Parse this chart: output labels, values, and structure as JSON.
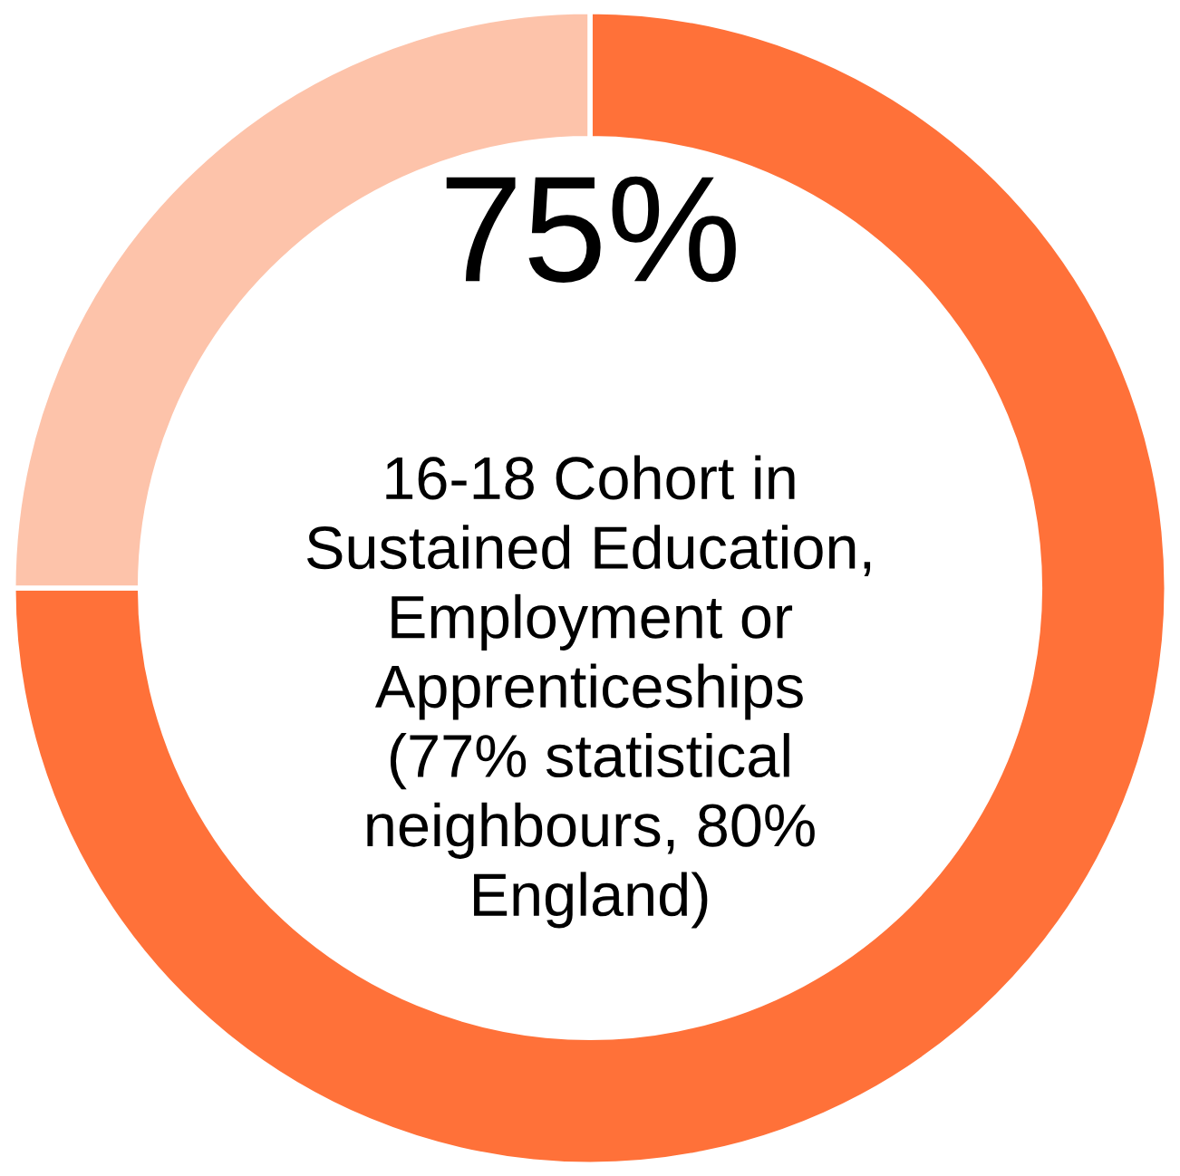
{
  "chart_data": {
    "type": "donut",
    "categories": [
      null,
      null
    ],
    "values": [
      75,
      25
    ],
    "colors": [
      "#ff7139",
      "#fdc3aa"
    ],
    "value_labels": [
      "75%",
      null
    ],
    "annotations": [
      "16-18 Cohort in\nSustained Education,\nEmployment or\nApprenticeships\n(77% statistical\nneighbours, 80%\nEngland)"
    ]
  }
}
